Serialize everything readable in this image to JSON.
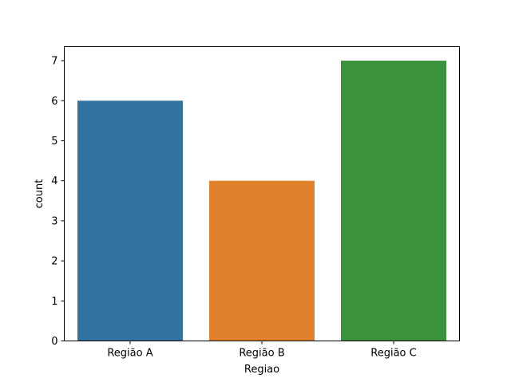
{
  "chart_data": {
    "type": "bar",
    "title": "",
    "xlabel": "Regiao",
    "ylabel": "count",
    "categories": [
      "Região A",
      "Região B",
      "Região C"
    ],
    "values": [
      6,
      4,
      7
    ],
    "colors": [
      "#3274a1",
      "#e1812c",
      "#3a923a"
    ],
    "ylim": [
      0,
      7.35
    ],
    "yticks": [
      0,
      1,
      2,
      3,
      4,
      5,
      6,
      7
    ],
    "grid": false,
    "legend": "none"
  }
}
